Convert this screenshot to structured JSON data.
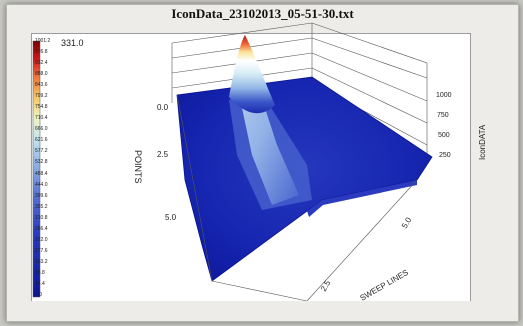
{
  "window": {
    "title": "IconData_23102013_05-51-30.txt"
  },
  "plot": {
    "cursor_value": "331.0",
    "x_axis_label": "SWEEP LINES",
    "y_axis_label": "POINTS",
    "z_axis_label": "IconDATA",
    "x_ticks": [
      "2.5",
      "5.0"
    ],
    "y_ticks": [
      "0.0",
      "2.5",
      "5.0"
    ],
    "z_ticks": [
      "1000",
      "750",
      "500",
      "250"
    ]
  },
  "colorbar": {
    "labels": [
      "1001.2",
      "976.8",
      "932.4",
      "888.0",
      "843.6",
      "799.2",
      "754.8",
      "710.4",
      "666.0",
      "621.6",
      "577.2",
      "532.8",
      "488.4",
      "444.0",
      "399.6",
      "355.2",
      "310.8",
      "266.4",
      "222.0",
      "177.6",
      "133.2",
      "88.8",
      "44.4",
      "0.0"
    ],
    "colors": [
      "#8b0000",
      "#d0161a",
      "#ef5a2a",
      "#f59c3d",
      "#f8d77a",
      "#e8f2b8",
      "#d6efe9",
      "#bfe0f0",
      "#9fc2ea",
      "#7f9de2",
      "#5f78d8",
      "#3f55cd",
      "#2a3ec3",
      "#1a2bb6",
      "#0f1ea8",
      "#0a1699"
    ]
  },
  "chart_data": {
    "type": "surface",
    "title": "IconData_23102013_05-51-30.txt",
    "xlabel": "SWEEP LINES",
    "ylabel": "POINTS",
    "zlabel": "IconDATA",
    "zlim": [
      0,
      1001.2
    ],
    "z_ticks": [
      250,
      500,
      750,
      1000
    ],
    "x_ticks": [
      2.5,
      5.0
    ],
    "y_ticks": [
      0.0,
      2.5,
      5.0
    ]
  }
}
